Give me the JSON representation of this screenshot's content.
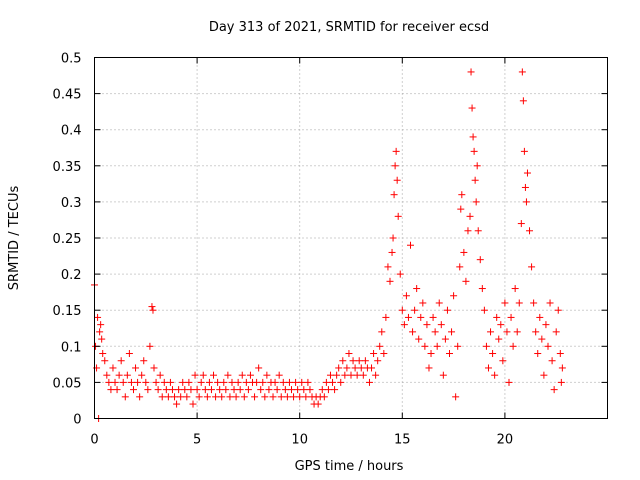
{
  "chart_data": {
    "type": "scatter",
    "title": "Day 313 of 2021, SRMTID for receiver ecsd",
    "xlabel": "GPS time / hours",
    "ylabel": "SRMTID / TECUs",
    "xlim": [
      0,
      25
    ],
    "ylim": [
      0,
      0.5
    ],
    "xticks": [
      0,
      5,
      10,
      15,
      20
    ],
    "xtick_labels": [
      "0",
      "5",
      "10",
      "15",
      "20"
    ],
    "yticks": [
      0,
      0.05,
      0.1,
      0.15,
      0.2,
      0.25,
      0.3,
      0.35,
      0.4,
      0.45,
      0.5
    ],
    "ytick_labels": [
      "0",
      "0.05",
      "0.1",
      "0.15",
      "0.2",
      "0.25",
      "0.3",
      "0.35",
      "0.4",
      "0.45",
      "0.5"
    ],
    "grid": true,
    "marker": "+",
    "color": "#ff0000",
    "series": [
      {
        "name": "SRMTID",
        "points": [
          [
            0.0,
            0.185
          ],
          [
            0.05,
            0.1
          ],
          [
            0.1,
            0.07
          ],
          [
            0.15,
            0.14
          ],
          [
            0.2,
            0.0
          ],
          [
            0.25,
            0.12
          ],
          [
            0.3,
            0.13
          ],
          [
            0.35,
            0.11
          ],
          [
            0.4,
            0.09
          ],
          [
            0.5,
            0.08
          ],
          [
            0.6,
            0.06
          ],
          [
            0.7,
            0.05
          ],
          [
            0.8,
            0.04
          ],
          [
            0.9,
            0.07
          ],
          [
            1.0,
            0.05
          ],
          [
            1.1,
            0.04
          ],
          [
            1.2,
            0.06
          ],
          [
            1.3,
            0.08
          ],
          [
            1.4,
            0.05
          ],
          [
            1.5,
            0.03
          ],
          [
            1.6,
            0.06
          ],
          [
            1.7,
            0.09
          ],
          [
            1.8,
            0.05
          ],
          [
            1.9,
            0.04
          ],
          [
            2.0,
            0.07
          ],
          [
            2.1,
            0.05
          ],
          [
            2.2,
            0.03
          ],
          [
            2.3,
            0.06
          ],
          [
            2.4,
            0.08
          ],
          [
            2.5,
            0.05
          ],
          [
            2.6,
            0.04
          ],
          [
            2.7,
            0.1
          ],
          [
            2.8,
            0.155
          ],
          [
            2.85,
            0.15
          ],
          [
            2.9,
            0.07
          ],
          [
            3.0,
            0.05
          ],
          [
            3.1,
            0.04
          ],
          [
            3.2,
            0.06
          ],
          [
            3.3,
            0.03
          ],
          [
            3.4,
            0.05
          ],
          [
            3.5,
            0.04
          ],
          [
            3.6,
            0.03
          ],
          [
            3.7,
            0.05
          ],
          [
            3.8,
            0.04
          ],
          [
            3.9,
            0.03
          ],
          [
            4.0,
            0.02
          ],
          [
            4.1,
            0.04
          ],
          [
            4.2,
            0.03
          ],
          [
            4.3,
            0.05
          ],
          [
            4.4,
            0.04
          ],
          [
            4.5,
            0.03
          ],
          [
            4.6,
            0.05
          ],
          [
            4.7,
            0.04
          ],
          [
            4.8,
            0.02
          ],
          [
            4.9,
            0.06
          ],
          [
            5.0,
            0.04
          ],
          [
            5.1,
            0.03
          ],
          [
            5.2,
            0.05
          ],
          [
            5.3,
            0.06
          ],
          [
            5.4,
            0.04
          ],
          [
            5.5,
            0.03
          ],
          [
            5.6,
            0.05
          ],
          [
            5.7,
            0.04
          ],
          [
            5.8,
            0.06
          ],
          [
            5.9,
            0.03
          ],
          [
            6.0,
            0.05
          ],
          [
            6.1,
            0.04
          ],
          [
            6.2,
            0.03
          ],
          [
            6.3,
            0.05
          ],
          [
            6.4,
            0.04
          ],
          [
            6.5,
            0.06
          ],
          [
            6.6,
            0.03
          ],
          [
            6.7,
            0.05
          ],
          [
            6.8,
            0.04
          ],
          [
            6.9,
            0.03
          ],
          [
            7.0,
            0.05
          ],
          [
            7.1,
            0.04
          ],
          [
            7.2,
            0.06
          ],
          [
            7.3,
            0.03
          ],
          [
            7.4,
            0.05
          ],
          [
            7.5,
            0.04
          ],
          [
            7.6,
            0.06
          ],
          [
            7.7,
            0.05
          ],
          [
            7.8,
            0.03
          ],
          [
            7.9,
            0.05
          ],
          [
            8.0,
            0.07
          ],
          [
            8.1,
            0.04
          ],
          [
            8.2,
            0.05
          ],
          [
            8.3,
            0.03
          ],
          [
            8.4,
            0.06
          ],
          [
            8.5,
            0.04
          ],
          [
            8.6,
            0.05
          ],
          [
            8.7,
            0.03
          ],
          [
            8.8,
            0.05
          ],
          [
            8.9,
            0.04
          ],
          [
            9.0,
            0.06
          ],
          [
            9.1,
            0.03
          ],
          [
            9.2,
            0.05
          ],
          [
            9.3,
            0.04
          ],
          [
            9.4,
            0.03
          ],
          [
            9.5,
            0.05
          ],
          [
            9.6,
            0.04
          ],
          [
            9.7,
            0.03
          ],
          [
            9.8,
            0.05
          ],
          [
            9.9,
            0.04
          ],
          [
            10.0,
            0.03
          ],
          [
            10.1,
            0.05
          ],
          [
            10.2,
            0.04
          ],
          [
            10.3,
            0.03
          ],
          [
            10.4,
            0.05
          ],
          [
            10.5,
            0.04
          ],
          [
            10.6,
            0.03
          ],
          [
            10.7,
            0.02
          ],
          [
            10.8,
            0.03
          ],
          [
            10.9,
            0.02
          ],
          [
            11.0,
            0.03
          ],
          [
            11.1,
            0.04
          ],
          [
            11.2,
            0.03
          ],
          [
            11.3,
            0.05
          ],
          [
            11.4,
            0.04
          ],
          [
            11.5,
            0.06
          ],
          [
            11.6,
            0.05
          ],
          [
            11.7,
            0.04
          ],
          [
            11.8,
            0.06
          ],
          [
            11.9,
            0.07
          ],
          [
            12.0,
            0.05
          ],
          [
            12.1,
            0.08
          ],
          [
            12.2,
            0.06
          ],
          [
            12.3,
            0.07
          ],
          [
            12.4,
            0.09
          ],
          [
            12.5,
            0.06
          ],
          [
            12.6,
            0.08
          ],
          [
            12.7,
            0.07
          ],
          [
            12.8,
            0.06
          ],
          [
            12.9,
            0.08
          ],
          [
            13.0,
            0.07
          ],
          [
            13.1,
            0.06
          ],
          [
            13.2,
            0.08
          ],
          [
            13.3,
            0.07
          ],
          [
            13.4,
            0.05
          ],
          [
            13.5,
            0.07
          ],
          [
            13.6,
            0.09
          ],
          [
            13.7,
            0.06
          ],
          [
            13.8,
            0.08
          ],
          [
            13.9,
            0.1
          ],
          [
            14.0,
            0.12
          ],
          [
            14.1,
            0.09
          ],
          [
            14.2,
            0.14
          ],
          [
            14.3,
            0.21
          ],
          [
            14.4,
            0.19
          ],
          [
            14.5,
            0.23
          ],
          [
            14.55,
            0.25
          ],
          [
            14.6,
            0.31
          ],
          [
            14.65,
            0.35
          ],
          [
            14.7,
            0.37
          ],
          [
            14.75,
            0.33
          ],
          [
            14.8,
            0.28
          ],
          [
            14.9,
            0.2
          ],
          [
            15.0,
            0.15
          ],
          [
            15.1,
            0.13
          ],
          [
            15.2,
            0.17
          ],
          [
            15.3,
            0.14
          ],
          [
            15.4,
            0.24
          ],
          [
            15.5,
            0.12
          ],
          [
            15.6,
            0.15
          ],
          [
            15.7,
            0.18
          ],
          [
            15.8,
            0.11
          ],
          [
            15.9,
            0.14
          ],
          [
            16.0,
            0.16
          ],
          [
            16.1,
            0.1
          ],
          [
            16.2,
            0.13
          ],
          [
            16.3,
            0.07
          ],
          [
            16.4,
            0.09
          ],
          [
            16.5,
            0.14
          ],
          [
            16.6,
            0.12
          ],
          [
            16.7,
            0.1
          ],
          [
            16.8,
            0.16
          ],
          [
            16.9,
            0.13
          ],
          [
            17.0,
            0.06
          ],
          [
            17.1,
            0.11
          ],
          [
            17.2,
            0.15
          ],
          [
            17.3,
            0.09
          ],
          [
            17.4,
            0.12
          ],
          [
            17.5,
            0.17
          ],
          [
            17.6,
            0.03
          ],
          [
            17.7,
            0.1
          ],
          [
            17.8,
            0.21
          ],
          [
            17.85,
            0.29
          ],
          [
            17.9,
            0.31
          ],
          [
            18.0,
            0.23
          ],
          [
            18.1,
            0.19
          ],
          [
            18.2,
            0.26
          ],
          [
            18.3,
            0.28
          ],
          [
            18.35,
            0.48
          ],
          [
            18.4,
            0.43
          ],
          [
            18.45,
            0.39
          ],
          [
            18.5,
            0.37
          ],
          [
            18.55,
            0.33
          ],
          [
            18.6,
            0.3
          ],
          [
            18.65,
            0.35
          ],
          [
            18.7,
            0.26
          ],
          [
            18.8,
            0.22
          ],
          [
            18.9,
            0.18
          ],
          [
            19.0,
            0.15
          ],
          [
            19.1,
            0.1
          ],
          [
            19.2,
            0.07
          ],
          [
            19.3,
            0.12
          ],
          [
            19.4,
            0.09
          ],
          [
            19.5,
            0.06
          ],
          [
            19.6,
            0.14
          ],
          [
            19.7,
            0.11
          ],
          [
            19.8,
            0.13
          ],
          [
            19.9,
            0.08
          ],
          [
            20.0,
            0.16
          ],
          [
            20.1,
            0.12
          ],
          [
            20.2,
            0.05
          ],
          [
            20.3,
            0.14
          ],
          [
            20.4,
            0.1
          ],
          [
            20.5,
            0.18
          ],
          [
            20.6,
            0.12
          ],
          [
            20.7,
            0.16
          ],
          [
            20.8,
            0.27
          ],
          [
            20.85,
            0.48
          ],
          [
            20.9,
            0.44
          ],
          [
            20.95,
            0.37
          ],
          [
            21.0,
            0.32
          ],
          [
            21.05,
            0.3
          ],
          [
            21.1,
            0.34
          ],
          [
            21.2,
            0.26
          ],
          [
            21.3,
            0.21
          ],
          [
            21.4,
            0.16
          ],
          [
            21.5,
            0.12
          ],
          [
            21.6,
            0.09
          ],
          [
            21.7,
            0.14
          ],
          [
            21.8,
            0.11
          ],
          [
            21.9,
            0.06
          ],
          [
            22.0,
            0.13
          ],
          [
            22.1,
            0.1
          ],
          [
            22.2,
            0.16
          ],
          [
            22.3,
            0.08
          ],
          [
            22.4,
            0.04
          ],
          [
            22.5,
            0.12
          ],
          [
            22.6,
            0.15
          ],
          [
            22.7,
            0.09
          ],
          [
            22.75,
            0.05
          ],
          [
            22.8,
            0.07
          ]
        ]
      }
    ]
  }
}
